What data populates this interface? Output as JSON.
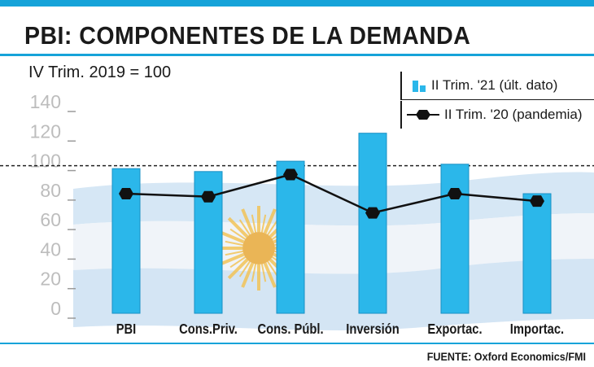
{
  "title": "PBI: COMPONENTES DE LA DEMANDA",
  "subtitle": "IV Trim. 2019 = 100",
  "source": "FUENTE: Oxford Economics/FMI",
  "colors": {
    "accent": "#16a3d9",
    "bar": "#2bb7ea",
    "line": "#111111"
  },
  "chart_data": {
    "type": "bar",
    "categories": [
      "PBI",
      "Cons.Priv.",
      "Cons. Públ.",
      "Inversión",
      "Exportac.",
      "Importac."
    ],
    "series": [
      {
        "name": "II Trim. '21 (últ. dato)",
        "type": "bar",
        "values": [
          98,
          96,
          103,
          122,
          101,
          81
        ]
      },
      {
        "name": "II Trim. '20 (pandemia)",
        "type": "line",
        "values": [
          81,
          79,
          94,
          68,
          81,
          76
        ]
      }
    ],
    "yticks": [
      "0",
      "20",
      "40",
      "60",
      "80",
      "100",
      "120",
      "140"
    ],
    "ylim": [
      0,
      140
    ],
    "reference_line": 100,
    "legend_position": "top-right"
  }
}
